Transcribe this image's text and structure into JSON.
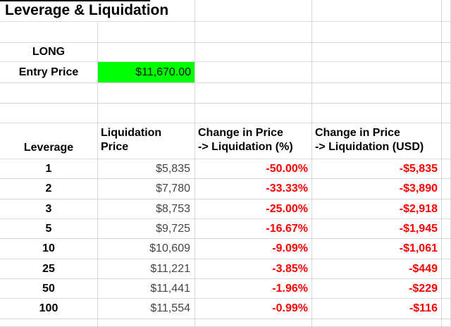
{
  "app": {
    "title": "Leverage & Liquidation"
  },
  "position": {
    "label": "LONG"
  },
  "entry": {
    "label": "Entry Price",
    "value": "$11,670.00"
  },
  "table": {
    "headers": {
      "leverage": "Leverage",
      "liq_price_l1": "Liquidation",
      "liq_price_l2": "Price",
      "pct_l1": "Change in Price",
      "pct_l2": "-> Liquidation (%)",
      "usd_l1": "Change in Price",
      "usd_l2": "-> Liquidation (USD)"
    },
    "rows": [
      {
        "leverage": "1",
        "liq_price": "$5,835",
        "pct": "-50.00%",
        "usd": "-$5,835"
      },
      {
        "leverage": "2",
        "liq_price": "$7,780",
        "pct": "-33.33%",
        "usd": "-$3,890"
      },
      {
        "leverage": "3",
        "liq_price": "$8,753",
        "pct": "-25.00%",
        "usd": "-$2,918"
      },
      {
        "leverage": "5",
        "liq_price": "$9,725",
        "pct": "-16.67%",
        "usd": "-$1,945"
      },
      {
        "leverage": "10",
        "liq_price": "$10,609",
        "pct": "-9.09%",
        "usd": "-$1,061"
      },
      {
        "leverage": "25",
        "liq_price": "$11,221",
        "pct": "-3.85%",
        "usd": "-$449"
      },
      {
        "leverage": "50",
        "liq_price": "$11,441",
        "pct": "-1.96%",
        "usd": "-$229"
      },
      {
        "leverage": "100",
        "liq_price": "$11,554",
        "pct": "-0.99%",
        "usd": "-$116"
      }
    ]
  },
  "colors": {
    "highlight_green": "#00ff00",
    "negative_red": "#ff0000",
    "gridline": "#d9d9d9"
  }
}
